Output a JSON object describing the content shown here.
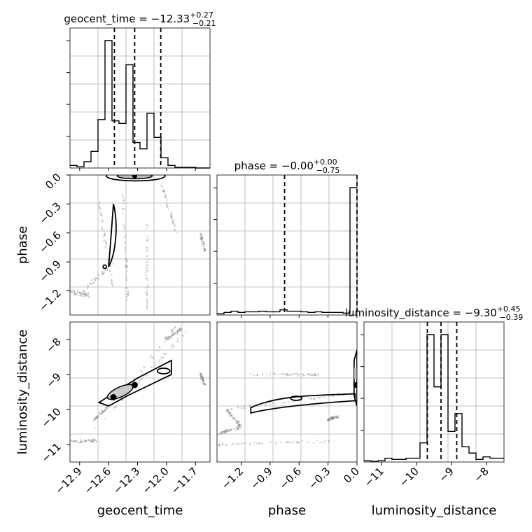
{
  "chart_data": {
    "type": "corner",
    "parameters": [
      "geocent_time",
      "phase",
      "luminosity_distance"
    ],
    "titles": [
      {
        "param": "geocent_time",
        "text": "geocent_time = −12.33",
        "plus": "+0.27",
        "minus": "−0.21"
      },
      {
        "param": "phase",
        "text": "phase = −0.00",
        "plus": "+0.00",
        "minus": "−0.75"
      },
      {
        "param": "luminosity_distance",
        "text": "luminosity_distance = −9.30",
        "plus": "+0.45",
        "minus": "−0.39"
      }
    ],
    "ranges": {
      "geocent_time": [
        -13.0,
        -11.55
      ],
      "phase": [
        -1.45,
        0.0
      ],
      "luminosity_distance": [
        -11.5,
        -7.5
      ]
    },
    "ticks": {
      "geocent_time": {
        "values": [
          -12.9,
          -12.6,
          -12.3,
          -12.0,
          -11.7
        ],
        "labels": [
          "−12.9",
          "−12.6",
          "−12.3",
          "−12.0",
          "−11.7"
        ]
      },
      "phase": {
        "values": [
          -1.2,
          -0.9,
          -0.6,
          -0.3,
          0.0
        ],
        "labels": [
          "−1.2",
          "−0.9",
          "−0.6",
          "−0.3",
          "0.0"
        ]
      },
      "luminosity_distance": {
        "values": [
          -11,
          -10,
          -9,
          -8
        ],
        "labels": [
          "−11",
          "−10",
          "−9",
          "−8"
        ]
      }
    },
    "quantiles": {
      "geocent_time": [
        -12.54,
        -12.33,
        -12.06
      ],
      "phase": [
        -0.75,
        0.0
      ],
      "luminosity_distance": [
        -9.69,
        -9.3,
        -8.85
      ]
    },
    "histograms": {
      "geocent_time": {
        "edges_start": -13.0,
        "bin_width": 0.0725,
        "counts": [
          2,
          1,
          5,
          13,
          38,
          100,
          37,
          35,
          81,
          20,
          15,
          43,
          24,
          8,
          2,
          0.5,
          0.5,
          0.5,
          0,
          0
        ]
      },
      "phase": {
        "edges_start": -1.45,
        "bin_width": 0.0725,
        "counts": [
          1,
          2,
          3,
          2,
          2.5,
          2.5,
          3,
          2.5,
          2.5,
          4,
          3,
          3,
          2.5,
          2,
          2.5,
          2,
          2,
          2,
          1.5,
          100
        ]
      },
      "luminosity_distance": {
        "edges_start": -11.5,
        "bin_width": 0.2,
        "counts": [
          1,
          0.5,
          1,
          3,
          2,
          2,
          3,
          3,
          15,
          100,
          59,
          100,
          24,
          38,
          12,
          7,
          2,
          4,
          3,
          3
        ]
      }
    },
    "grid": true
  }
}
